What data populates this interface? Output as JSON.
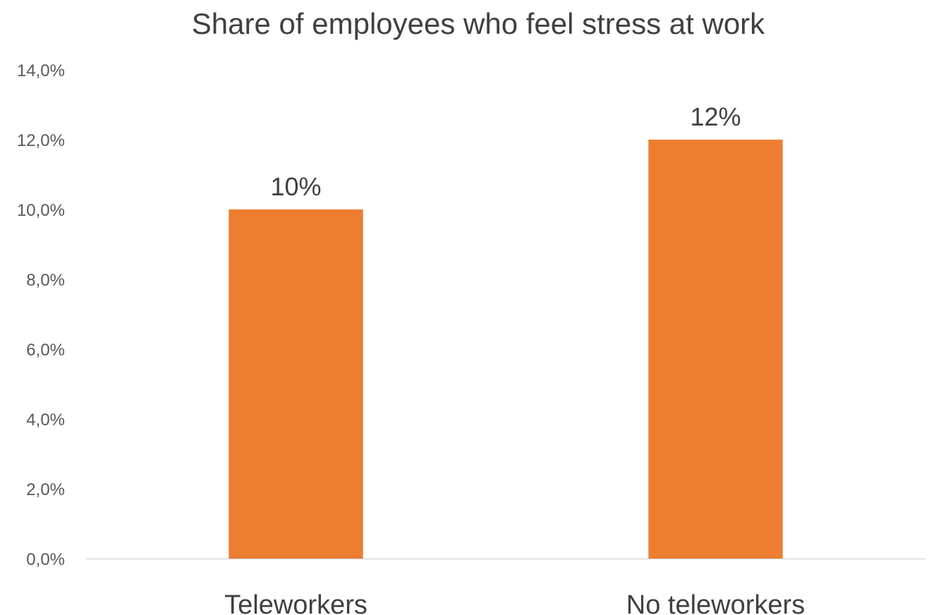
{
  "chart_data": {
    "type": "bar",
    "title": "Share of employees who feel stress at work",
    "categories": [
      "Teleworkers",
      "No teleworkers"
    ],
    "values": [
      10,
      12
    ],
    "data_labels": [
      "10%",
      "12%"
    ],
    "y_tick_values": [
      0,
      2,
      4,
      6,
      8,
      10,
      12,
      14
    ],
    "y_tick_labels": [
      "0,0%",
      "2,0%",
      "4,0%",
      "6,0%",
      "8,0%",
      "10,0%",
      "12,0%",
      "14,0%"
    ],
    "ylim": [
      0,
      14
    ],
    "unit": "%",
    "grid": false,
    "legend": "none",
    "bar_color": "#ED7D31",
    "axis_color": "#D9D9D9"
  }
}
